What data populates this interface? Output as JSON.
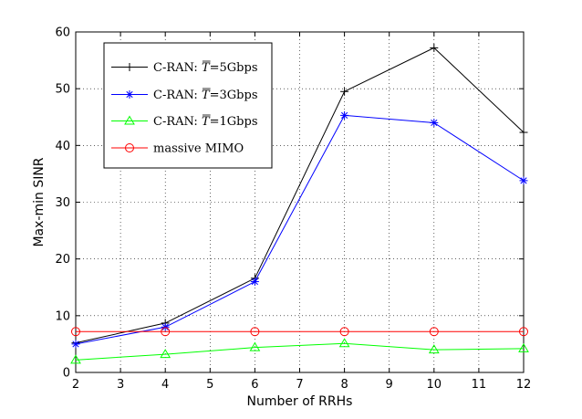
{
  "chart_data": {
    "type": "line",
    "xlabel": "Number of RRHs",
    "ylabel": "Max-min SINR",
    "xlim": [
      2,
      12
    ],
    "ylim": [
      0,
      60
    ],
    "xticks": [
      2,
      3,
      4,
      5,
      6,
      7,
      8,
      9,
      10,
      11,
      12
    ],
    "yticks": [
      0,
      10,
      20,
      30,
      40,
      50,
      60
    ],
    "grid": true,
    "legend_position": "top-left",
    "x": [
      2,
      4,
      6,
      8,
      10,
      12
    ],
    "series": [
      {
        "name_prefix": "C-RAN: ",
        "name_var": "T",
        "name_suffix": "=5Gbps",
        "color": "#000000",
        "marker": "plus",
        "values": [
          5.2,
          8.7,
          16.6,
          49.5,
          57.2,
          42.3
        ]
      },
      {
        "name_prefix": "C-RAN: ",
        "name_var": "T",
        "name_suffix": "=3Gbps",
        "color": "#0000ff",
        "marker": "asterisk",
        "values": [
          5.0,
          8.0,
          16.0,
          45.3,
          44.0,
          33.8
        ]
      },
      {
        "name_prefix": "C-RAN: ",
        "name_var": "T",
        "name_suffix": "=1Gbps",
        "color": "#00ff00",
        "marker": "triangle",
        "values": [
          2.2,
          3.2,
          4.4,
          5.1,
          4.0,
          4.2
        ]
      },
      {
        "name_prefix": "massive MIMO",
        "name_var": "",
        "name_suffix": "",
        "color": "#ff0000",
        "marker": "circle",
        "values": [
          7.2,
          7.2,
          7.2,
          7.2,
          7.2,
          7.2
        ]
      }
    ]
  }
}
